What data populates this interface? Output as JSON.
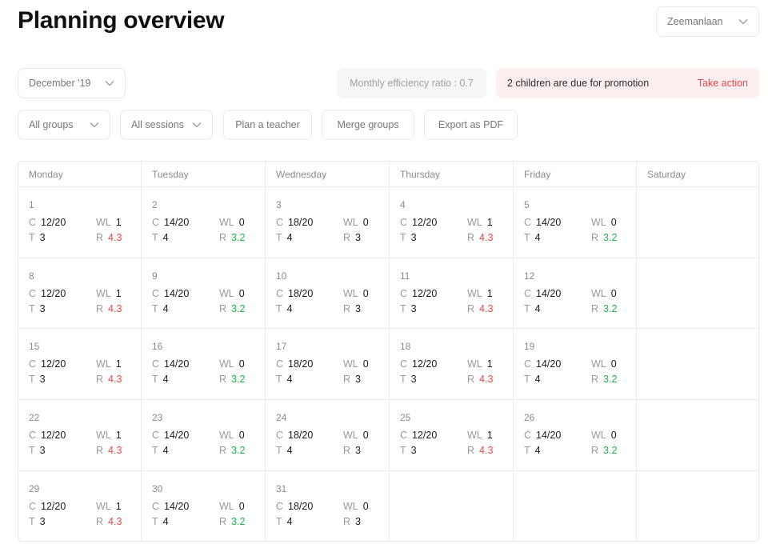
{
  "header": {
    "title": "Planning overview",
    "location": "Zeemanlaan"
  },
  "toolbar": {
    "month": "December '19",
    "efficiency": "Monthly efficiency ratio : 0.7",
    "promotion": {
      "message": "2 children are due for promotion",
      "action": "Take action"
    }
  },
  "filters": {
    "groups": "All groups",
    "sessions": "All sessions",
    "plan_teacher": "Plan a teacher",
    "merge_groups": "Merge groups",
    "export_pdf": "Export as PDF"
  },
  "colors": {
    "red": "#ec4a4a",
    "green": "#22b14c",
    "promo_bg": "#fdeef0"
  },
  "calendar": {
    "weekdays": [
      "Monday",
      "Tuesday",
      "Wednesday",
      "Thursday",
      "Friday",
      "Saturday"
    ],
    "stat_labels": {
      "c": "C",
      "wl": "WL",
      "t": "T",
      "r": "R"
    },
    "weeks": [
      [
        {
          "day": "1",
          "c": "12/20",
          "wl": "1",
          "t": "3",
          "r": "4.3",
          "rc": "red"
        },
        {
          "day": "2",
          "c": "14/20",
          "wl": "0",
          "t": "4",
          "r": "3.2",
          "rc": "green"
        },
        {
          "day": "3",
          "c": "18/20",
          "wl": "0",
          "t": "4",
          "r": "3",
          "rc": ""
        },
        {
          "day": "4",
          "c": "12/20",
          "wl": "1",
          "t": "3",
          "r": "4.3",
          "rc": "red"
        },
        {
          "day": "5",
          "c": "14/20",
          "wl": "0",
          "t": "4",
          "r": "3.2",
          "rc": "green"
        },
        null
      ],
      [
        {
          "day": "8",
          "c": "12/20",
          "wl": "1",
          "t": "3",
          "r": "4.3",
          "rc": "red"
        },
        {
          "day": "9",
          "c": "14/20",
          "wl": "0",
          "t": "4",
          "r": "3.2",
          "rc": "green"
        },
        {
          "day": "10",
          "c": "18/20",
          "wl": "0",
          "t": "4",
          "r": "3",
          "rc": ""
        },
        {
          "day": "11",
          "c": "12/20",
          "wl": "1",
          "t": "3",
          "r": "4.3",
          "rc": "red"
        },
        {
          "day": "12",
          "c": "14/20",
          "wl": "0",
          "t": "4",
          "r": "3.2",
          "rc": "green"
        },
        null
      ],
      [
        {
          "day": "15",
          "c": "12/20",
          "wl": "1",
          "t": "3",
          "r": "4.3",
          "rc": "red"
        },
        {
          "day": "16",
          "c": "14/20",
          "wl": "0",
          "t": "4",
          "r": "3.2",
          "rc": "green"
        },
        {
          "day": "17",
          "c": "18/20",
          "wl": "0",
          "t": "4",
          "r": "3",
          "rc": ""
        },
        {
          "day": "18",
          "c": "12/20",
          "wl": "1",
          "t": "3",
          "r": "4.3",
          "rc": "red"
        },
        {
          "day": "19",
          "c": "14/20",
          "wl": "0",
          "t": "4",
          "r": "3.2",
          "rc": "green"
        },
        null
      ],
      [
        {
          "day": "22",
          "c": "12/20",
          "wl": "1",
          "t": "3",
          "r": "4.3",
          "rc": "red"
        },
        {
          "day": "23",
          "c": "14/20",
          "wl": "0",
          "t": "4",
          "r": "3.2",
          "rc": "green"
        },
        {
          "day": "24",
          "c": "18/20",
          "wl": "0",
          "t": "4",
          "r": "3",
          "rc": ""
        },
        {
          "day": "25",
          "c": "12/20",
          "wl": "1",
          "t": "3",
          "r": "4.3",
          "rc": "red"
        },
        {
          "day": "26",
          "c": "14/20",
          "wl": "0",
          "t": "4",
          "r": "3.2",
          "rc": "green"
        },
        null
      ],
      [
        {
          "day": "29",
          "c": "12/20",
          "wl": "1",
          "t": "3",
          "r": "4.3",
          "rc": "red"
        },
        {
          "day": "30",
          "c": "14/20",
          "wl": "0",
          "t": "4",
          "r": "3.2",
          "rc": "green"
        },
        {
          "day": "31",
          "c": "18/20",
          "wl": "0",
          "t": "4",
          "r": "3",
          "rc": ""
        },
        null,
        null,
        null
      ]
    ]
  }
}
